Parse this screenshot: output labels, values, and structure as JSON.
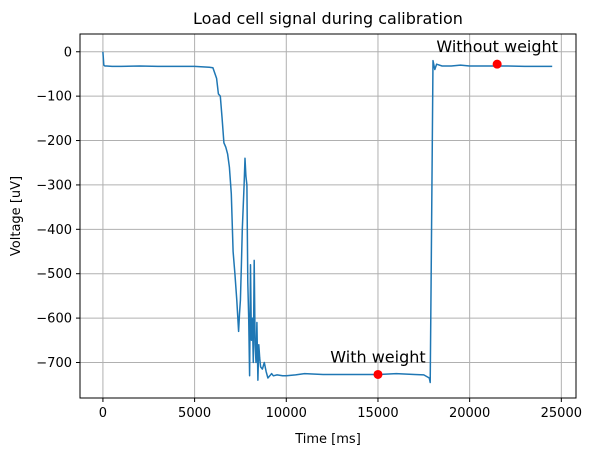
{
  "chart_data": {
    "type": "line",
    "title": "Load cell signal during calibration",
    "xlabel": "Time [ms]",
    "ylabel": "Voltage [uV]",
    "xlim": [
      -1250,
      25800
    ],
    "ylim": [
      -780,
      40
    ],
    "xticks": [
      0,
      5000,
      10000,
      15000,
      20000,
      25000
    ],
    "yticks": [
      0,
      -100,
      -200,
      -300,
      -400,
      -500,
      -600,
      -700
    ],
    "xtick_labels": [
      "0",
      "5000",
      "10000",
      "15000",
      "20000",
      "25000"
    ],
    "ytick_labels": [
      "0",
      "−100",
      "−200",
      "−300",
      "−400",
      "−500",
      "−600",
      "−700"
    ],
    "grid": true,
    "series_color": "#1f77b4",
    "marker_color": "#ff0000",
    "series": [
      {
        "x": [
          0,
          50,
          100,
          200,
          500,
          1000,
          2000,
          3000,
          4000,
          5000,
          5800,
          6000,
          6200,
          6300,
          6400,
          6500,
          6600,
          6700,
          6800,
          6900,
          7000,
          7100,
          7200,
          7300,
          7400,
          7450,
          7500,
          7550,
          7600,
          7700,
          7750,
          7800,
          7850,
          7900,
          7950,
          8000,
          8050,
          8100,
          8150,
          8200,
          8250,
          8300,
          8350,
          8400,
          8450,
          8500,
          8550,
          8600,
          8700,
          8800,
          8900,
          9000,
          9100,
          9200,
          9300,
          9500,
          9800,
          10000,
          10500,
          11000,
          12000,
          13000,
          14000,
          15000,
          16000,
          17000,
          17500,
          17800,
          17850,
          17900,
          18000,
          18100,
          18200,
          18500,
          19000,
          19500,
          20000,
          21000,
          21500,
          22000,
          23000,
          24000,
          24500
        ],
        "y": [
          0,
          -30,
          -32,
          -32,
          -33,
          -33,
          -32,
          -33,
          -33,
          -33,
          -35,
          -36,
          -60,
          -95,
          -100,
          -150,
          -205,
          -215,
          -230,
          -260,
          -320,
          -450,
          -500,
          -560,
          -630,
          -590,
          -560,
          -480,
          -400,
          -300,
          -240,
          -280,
          -300,
          -520,
          -600,
          -730,
          -480,
          -650,
          -600,
          -700,
          -470,
          -660,
          -700,
          -610,
          -740,
          -660,
          -690,
          -710,
          -715,
          -700,
          -720,
          -735,
          -730,
          -725,
          -730,
          -728,
          -730,
          -730,
          -728,
          -725,
          -727,
          -727,
          -727,
          -727,
          -725,
          -727,
          -728,
          -735,
          -745,
          -520,
          -20,
          -40,
          -28,
          -32,
          -32,
          -30,
          -32,
          -32,
          -32,
          -32,
          -33,
          -33,
          -33
        ]
      }
    ],
    "annotations": [
      {
        "label": "With weight",
        "x": 15000,
        "y": -727
      },
      {
        "label": "Without weight",
        "x": 21500,
        "y": -28
      }
    ]
  }
}
